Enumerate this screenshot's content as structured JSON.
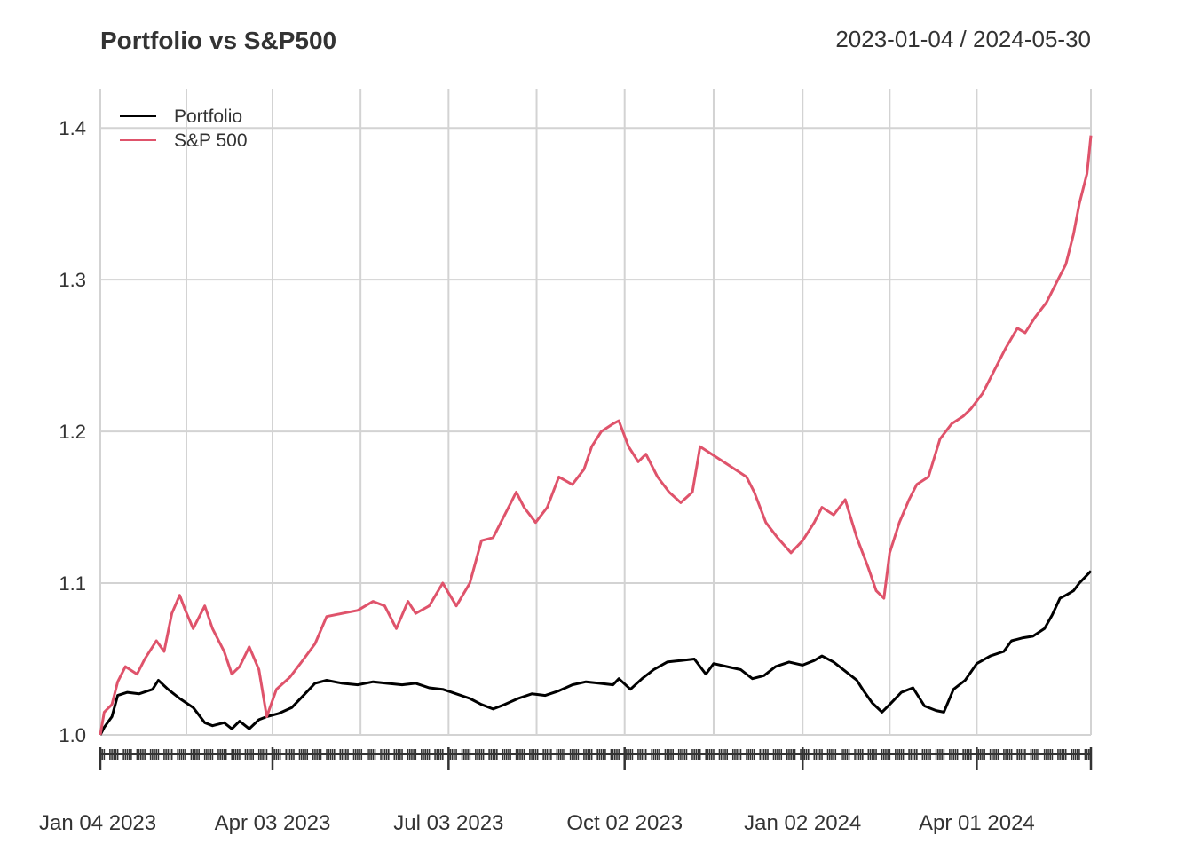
{
  "chart_data": {
    "type": "line",
    "title": "Portfolio vs S&P500",
    "date_range": "2023-01-04 / 2024-05-30",
    "xlabel": "",
    "ylabel": "",
    "xlim": [
      "2023-01-04",
      "2024-05-30"
    ],
    "ylim": [
      1.0,
      1.42
    ],
    "yticks": [
      "1.0",
      "1.1",
      "1.2",
      "1.3",
      "1.4"
    ],
    "xticks": [
      "Jan 04 2023",
      "Apr 03 2023",
      "Jul 03 2023",
      "Oct 02 2023",
      "Jan 02 2024",
      "Apr 01 2024"
    ],
    "grid": true,
    "legend_position": "top-left",
    "series": [
      {
        "name": "Portfolio",
        "color": "#000000",
        "points": [
          [
            "2023-01-04",
            1.0
          ],
          [
            "2023-01-06",
            1.005
          ],
          [
            "2023-01-10",
            1.012
          ],
          [
            "2023-01-13",
            1.026
          ],
          [
            "2023-01-18",
            1.028
          ],
          [
            "2023-01-24",
            1.027
          ],
          [
            "2023-01-31",
            1.03
          ],
          [
            "2023-02-03",
            1.036
          ],
          [
            "2023-02-08",
            1.03
          ],
          [
            "2023-02-14",
            1.024
          ],
          [
            "2023-02-21",
            1.018
          ],
          [
            "2023-02-27",
            1.008
          ],
          [
            "2023-03-03",
            1.006
          ],
          [
            "2023-03-09",
            1.008
          ],
          [
            "2023-03-13",
            1.004
          ],
          [
            "2023-03-17",
            1.009
          ],
          [
            "2023-03-22",
            1.004
          ],
          [
            "2023-03-27",
            1.01
          ],
          [
            "2023-03-31",
            1.012
          ],
          [
            "2023-04-06",
            1.014
          ],
          [
            "2023-04-13",
            1.018
          ],
          [
            "2023-04-19",
            1.026
          ],
          [
            "2023-04-25",
            1.034
          ],
          [
            "2023-05-01",
            1.036
          ],
          [
            "2023-05-09",
            1.034
          ],
          [
            "2023-05-17",
            1.033
          ],
          [
            "2023-05-25",
            1.035
          ],
          [
            "2023-06-01",
            1.034
          ],
          [
            "2023-06-09",
            1.033
          ],
          [
            "2023-06-16",
            1.034
          ],
          [
            "2023-06-23",
            1.031
          ],
          [
            "2023-06-30",
            1.03
          ],
          [
            "2023-07-07",
            1.027
          ],
          [
            "2023-07-14",
            1.024
          ],
          [
            "2023-07-20",
            1.02
          ],
          [
            "2023-07-26",
            1.017
          ],
          [
            "2023-08-01",
            1.02
          ],
          [
            "2023-08-08",
            1.024
          ],
          [
            "2023-08-15",
            1.027
          ],
          [
            "2023-08-22",
            1.026
          ],
          [
            "2023-08-29",
            1.029
          ],
          [
            "2023-09-05",
            1.033
          ],
          [
            "2023-09-12",
            1.035
          ],
          [
            "2023-09-19",
            1.034
          ],
          [
            "2023-09-26",
            1.033
          ],
          [
            "2023-09-29",
            1.037
          ],
          [
            "2023-10-05",
            1.03
          ],
          [
            "2023-10-11",
            1.037
          ],
          [
            "2023-10-17",
            1.043
          ],
          [
            "2023-10-24",
            1.048
          ],
          [
            "2023-10-31",
            1.049
          ],
          [
            "2023-11-07",
            1.05
          ],
          [
            "2023-11-13",
            1.04
          ],
          [
            "2023-11-17",
            1.047
          ],
          [
            "2023-11-24",
            1.045
          ],
          [
            "2023-12-01",
            1.043
          ],
          [
            "2023-12-07",
            1.037
          ],
          [
            "2023-12-13",
            1.039
          ],
          [
            "2023-12-19",
            1.045
          ],
          [
            "2023-12-26",
            1.048
          ],
          [
            "2024-01-02",
            1.046
          ],
          [
            "2024-01-08",
            1.049
          ],
          [
            "2024-01-12",
            1.052
          ],
          [
            "2024-01-18",
            1.048
          ],
          [
            "2024-01-24",
            1.042
          ],
          [
            "2024-01-30",
            1.036
          ],
          [
            "2024-02-02",
            1.03
          ],
          [
            "2024-02-07",
            1.021
          ],
          [
            "2024-02-12",
            1.015
          ],
          [
            "2024-02-16",
            1.02
          ],
          [
            "2024-02-22",
            1.028
          ],
          [
            "2024-02-28",
            1.031
          ],
          [
            "2024-03-05",
            1.019
          ],
          [
            "2024-03-11",
            1.016
          ],
          [
            "2024-03-15",
            1.015
          ],
          [
            "2024-03-20",
            1.03
          ],
          [
            "2024-03-26",
            1.036
          ],
          [
            "2024-04-01",
            1.047
          ],
          [
            "2024-04-08",
            1.052
          ],
          [
            "2024-04-15",
            1.055
          ],
          [
            "2024-04-19",
            1.062
          ],
          [
            "2024-04-25",
            1.064
          ],
          [
            "2024-04-30",
            1.065
          ],
          [
            "2024-05-06",
            1.07
          ],
          [
            "2024-05-10",
            1.079
          ],
          [
            "2024-05-14",
            1.09
          ],
          [
            "2024-05-17",
            1.092
          ],
          [
            "2024-05-21",
            1.095
          ],
          [
            "2024-05-24",
            1.1
          ],
          [
            "2024-05-27",
            1.104
          ],
          [
            "2024-05-30",
            1.108
          ]
        ]
      },
      {
        "name": "S&P 500",
        "color": "#DF536B",
        "points": [
          [
            "2023-01-04",
            1.0
          ],
          [
            "2023-01-06",
            1.015
          ],
          [
            "2023-01-10",
            1.02
          ],
          [
            "2023-01-13",
            1.035
          ],
          [
            "2023-01-17",
            1.045
          ],
          [
            "2023-01-23",
            1.04
          ],
          [
            "2023-01-27",
            1.05
          ],
          [
            "2023-02-02",
            1.062
          ],
          [
            "2023-02-06",
            1.055
          ],
          [
            "2023-02-10",
            1.08
          ],
          [
            "2023-02-14",
            1.092
          ],
          [
            "2023-02-17",
            1.082
          ],
          [
            "2023-02-21",
            1.07
          ],
          [
            "2023-02-27",
            1.085
          ],
          [
            "2023-03-03",
            1.07
          ],
          [
            "2023-03-09",
            1.055
          ],
          [
            "2023-03-13",
            1.04
          ],
          [
            "2023-03-17",
            1.045
          ],
          [
            "2023-03-22",
            1.058
          ],
          [
            "2023-03-27",
            1.043
          ],
          [
            "2023-03-31",
            1.012
          ],
          [
            "2023-04-05",
            1.03
          ],
          [
            "2023-04-12",
            1.038
          ],
          [
            "2023-04-18",
            1.048
          ],
          [
            "2023-04-25",
            1.06
          ],
          [
            "2023-05-01",
            1.078
          ],
          [
            "2023-05-09",
            1.08
          ],
          [
            "2023-05-17",
            1.082
          ],
          [
            "2023-05-25",
            1.088
          ],
          [
            "2023-05-31",
            1.085
          ],
          [
            "2023-06-06",
            1.07
          ],
          [
            "2023-06-12",
            1.088
          ],
          [
            "2023-06-16",
            1.08
          ],
          [
            "2023-06-23",
            1.085
          ],
          [
            "2023-06-30",
            1.1
          ],
          [
            "2023-07-07",
            1.085
          ],
          [
            "2023-07-14",
            1.1
          ],
          [
            "2023-07-20",
            1.128
          ],
          [
            "2023-07-26",
            1.13
          ],
          [
            "2023-08-01",
            1.145
          ],
          [
            "2023-08-07",
            1.16
          ],
          [
            "2023-08-11",
            1.15
          ],
          [
            "2023-08-17",
            1.14
          ],
          [
            "2023-08-23",
            1.15
          ],
          [
            "2023-08-29",
            1.17
          ],
          [
            "2023-09-05",
            1.165
          ],
          [
            "2023-09-11",
            1.175
          ],
          [
            "2023-09-15",
            1.19
          ],
          [
            "2023-09-20",
            1.2
          ],
          [
            "2023-09-26",
            1.205
          ],
          [
            "2023-09-29",
            1.207
          ],
          [
            "2023-10-04",
            1.19
          ],
          [
            "2023-10-09",
            1.18
          ],
          [
            "2023-10-13",
            1.185
          ],
          [
            "2023-10-19",
            1.17
          ],
          [
            "2023-10-25",
            1.16
          ],
          [
            "2023-10-31",
            1.153
          ],
          [
            "2023-11-06",
            1.16
          ],
          [
            "2023-11-10",
            1.19
          ],
          [
            "2023-11-16",
            1.185
          ],
          [
            "2023-11-22",
            1.18
          ],
          [
            "2023-11-28",
            1.175
          ],
          [
            "2023-12-04",
            1.17
          ],
          [
            "2023-12-08",
            1.16
          ],
          [
            "2023-12-14",
            1.14
          ],
          [
            "2023-12-20",
            1.13
          ],
          [
            "2023-12-27",
            1.12
          ],
          [
            "2024-01-02",
            1.128
          ],
          [
            "2024-01-08",
            1.14
          ],
          [
            "2024-01-12",
            1.15
          ],
          [
            "2024-01-18",
            1.145
          ],
          [
            "2024-01-24",
            1.155
          ],
          [
            "2024-01-30",
            1.13
          ],
          [
            "2024-02-05",
            1.11
          ],
          [
            "2024-02-09",
            1.095
          ],
          [
            "2024-02-13",
            1.09
          ],
          [
            "2024-02-16",
            1.12
          ],
          [
            "2024-02-21",
            1.14
          ],
          [
            "2024-02-26",
            1.155
          ],
          [
            "2024-03-01",
            1.165
          ],
          [
            "2024-03-07",
            1.17
          ],
          [
            "2024-03-13",
            1.195
          ],
          [
            "2024-03-19",
            1.205
          ],
          [
            "2024-03-25",
            1.21
          ],
          [
            "2024-03-29",
            1.215
          ],
          [
            "2024-04-04",
            1.225
          ],
          [
            "2024-04-10",
            1.24
          ],
          [
            "2024-04-16",
            1.255
          ],
          [
            "2024-04-22",
            1.268
          ],
          [
            "2024-04-26",
            1.265
          ],
          [
            "2024-05-01",
            1.275
          ],
          [
            "2024-05-07",
            1.285
          ],
          [
            "2024-05-13",
            1.3
          ],
          [
            "2024-05-17",
            1.31
          ],
          [
            "2024-05-21",
            1.33
          ],
          [
            "2024-05-24",
            1.35
          ],
          [
            "2024-05-28",
            1.37
          ],
          [
            "2024-05-30",
            1.395
          ]
        ]
      }
    ]
  }
}
